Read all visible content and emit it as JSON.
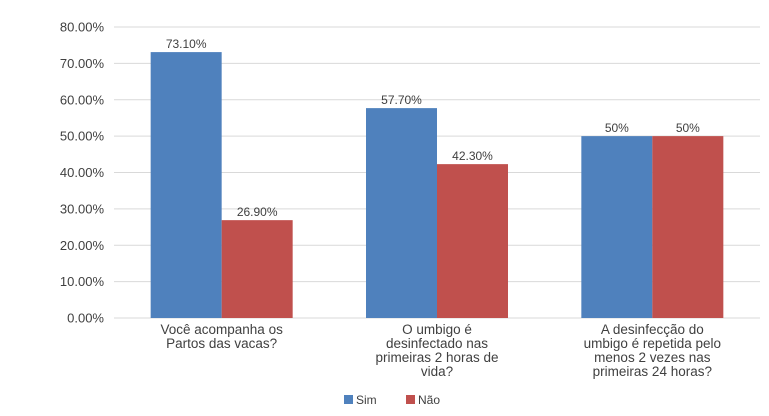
{
  "chart_data": {
    "type": "bar",
    "categories": [
      [
        "Você acompanha os",
        "Partos das vacas?"
      ],
      [
        "O umbigo é",
        "desinfectado nas",
        "primeiras 2 horas de",
        "vida?"
      ],
      [
        "A desinfecção do",
        "umbigo é repetida pelo",
        "menos 2 vezes nas",
        "primeiras 24 horas?"
      ]
    ],
    "series": [
      {
        "name": "Sim",
        "color": "#4F81BD",
        "values": [
          73.1,
          57.7,
          50
        ],
        "labels": [
          "73.10%",
          "57.70%",
          "50%"
        ]
      },
      {
        "name": "Não",
        "color": "#C0504D",
        "values": [
          26.9,
          42.3,
          50
        ],
        "labels": [
          "26.90%",
          "42.30%",
          "50%"
        ]
      }
    ],
    "ylim": [
      0,
      80
    ],
    "yticks": [
      "0.00%",
      "10.00%",
      "20.00%",
      "30.00%",
      "40.00%",
      "50.00%",
      "60.00%",
      "70.00%",
      "80.00%"
    ],
    "grid": true,
    "legend": "bottom"
  }
}
